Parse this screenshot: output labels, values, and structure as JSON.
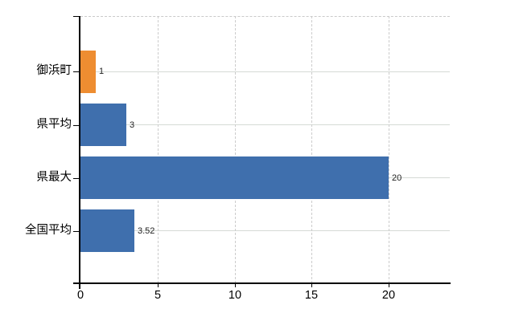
{
  "chart_data": {
    "type": "bar",
    "orientation": "horizontal",
    "title": "",
    "xlabel": "",
    "ylabel": "",
    "categories": [
      "御浜町",
      "県平均",
      "県最大",
      "全国平均"
    ],
    "values": [
      1,
      3,
      20,
      3.52
    ],
    "value_labels": [
      "1",
      "3",
      "20",
      "3.52"
    ],
    "bar_colors": [
      "#ee8d31",
      "#3f6fad",
      "#3f6fad",
      "#3f6fad"
    ],
    "x_ticks": [
      0,
      5,
      10,
      15,
      20
    ],
    "x_tick_labels": [
      "0",
      "5",
      "10",
      "15",
      "20"
    ],
    "xlim": [
      0,
      24
    ],
    "grid": "on",
    "gridline_style": {
      "vertical": "dashed",
      "horizontal": "solid"
    },
    "legend": "none"
  },
  "colors": {
    "background": "#ffffff",
    "bar_blue": "#3f6fad",
    "bar_orange": "#ee8d31",
    "axis": "#000000",
    "gridline_horizontal": "#d5dad5",
    "gridline_vertical": "#cccccc",
    "top_border": "#c9c9c9",
    "text": "#000000",
    "value_text": "#222222"
  }
}
